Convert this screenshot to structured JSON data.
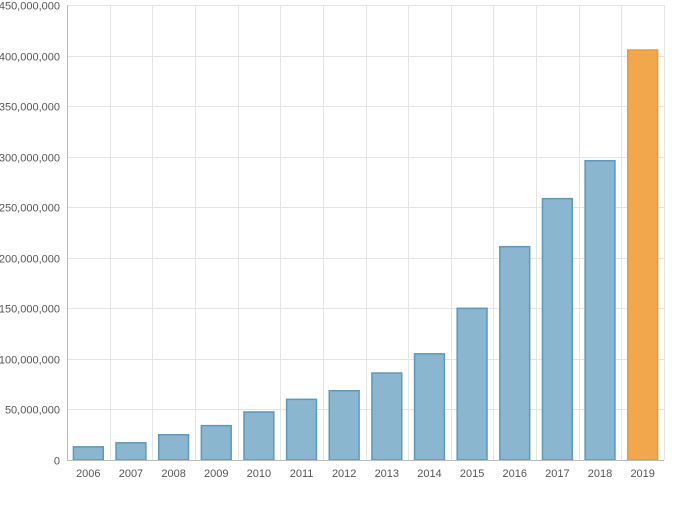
{
  "chart_data": {
    "type": "bar",
    "title": "",
    "xlabel": "",
    "ylabel": "",
    "categories": [
      "2006",
      "2007",
      "2008",
      "2009",
      "2010",
      "2011",
      "2012",
      "2013",
      "2014",
      "2015",
      "2016",
      "2017",
      "2018",
      "2019"
    ],
    "values": [
      13000000,
      17000000,
      25000000,
      34000000,
      47500000,
      60000000,
      68500000,
      86000000,
      105000000,
      150000000,
      211000000,
      258500000,
      296000000,
      405500000
    ],
    "ylim": [
      0,
      450000000
    ],
    "yticks": [
      "0",
      "50,000,000",
      "100,000,000",
      "150,000,000",
      "200,000,000",
      "250,000,000",
      "300,000,000",
      "350,000,000",
      "400,000,000",
      "450,000,000"
    ],
    "grid": true,
    "colors": {
      "bar_fill": "#8ab6d0",
      "bar_stroke": "#5e98ba",
      "highlight_fill": "#f2a74c",
      "highlight_stroke": "#eb9a37",
      "grid": "#e4e4e4",
      "axis": "#bbbbbb"
    },
    "highlight_category": "2019"
  }
}
